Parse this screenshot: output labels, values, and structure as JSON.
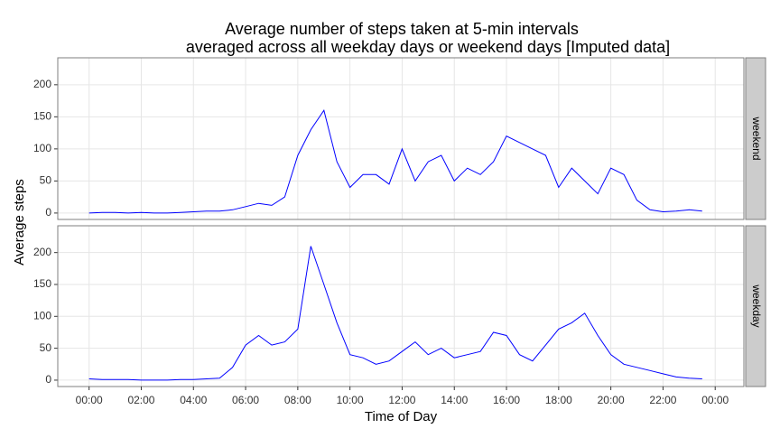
{
  "chart_data": {
    "type": "line",
    "title": [
      "Average number of steps taken at 5-min intervals",
      "averaged across all weekday days or weekend days [Imputed data]"
    ],
    "xlabel": "Time of Day",
    "ylabel": "Average steps",
    "x": [
      0,
      0.5,
      1,
      1.5,
      2,
      2.5,
      3,
      3.5,
      4,
      4.5,
      5,
      5.5,
      6,
      6.5,
      7,
      7.5,
      8,
      8.5,
      9,
      9.5,
      10,
      10.5,
      11,
      11.5,
      12,
      12.5,
      13,
      13.5,
      14,
      14.5,
      15,
      15.5,
      16,
      16.5,
      17,
      17.5,
      18,
      18.5,
      19,
      19.5,
      20,
      20.5,
      21,
      21.5,
      22,
      22.5,
      23,
      23.5
    ],
    "series": [
      {
        "name": "weekend",
        "color": "#0000ff",
        "values": [
          0,
          1,
          1,
          0,
          1,
          0,
          0,
          1,
          2,
          3,
          3,
          5,
          10,
          15,
          12,
          25,
          90,
          130,
          160,
          80,
          40,
          60,
          60,
          45,
          100,
          50,
          80,
          90,
          50,
          70,
          60,
          80,
          120,
          110,
          100,
          90,
          40,
          70,
          50,
          30,
          70,
          60,
          20,
          5,
          2,
          3,
          5,
          3
        ]
      },
      {
        "name": "weekday",
        "color": "#0000ff",
        "values": [
          2,
          1,
          1,
          1,
          0,
          0,
          0,
          1,
          1,
          2,
          3,
          20,
          55,
          70,
          55,
          60,
          80,
          210,
          150,
          90,
          40,
          35,
          25,
          30,
          45,
          60,
          40,
          50,
          35,
          40,
          45,
          75,
          70,
          40,
          30,
          55,
          80,
          90,
          105,
          70,
          40,
          25,
          20,
          15,
          10,
          5,
          3,
          2
        ]
      }
    ],
    "xlim": [
      -1.2,
      25.1
    ],
    "xticks": [
      {
        "value": 0,
        "label": "00:00"
      },
      {
        "value": 2,
        "label": "02:00"
      },
      {
        "value": 4,
        "label": "04:00"
      },
      {
        "value": 6,
        "label": "06:00"
      },
      {
        "value": 8,
        "label": "08:00"
      },
      {
        "value": 10,
        "label": "10:00"
      },
      {
        "value": 12,
        "label": "12:00"
      },
      {
        "value": 14,
        "label": "14:00"
      },
      {
        "value": 16,
        "label": "16:00"
      },
      {
        "value": 18,
        "label": "18:00"
      },
      {
        "value": 20,
        "label": "20:00"
      },
      {
        "value": 22,
        "label": "22:00"
      },
      {
        "value": 24,
        "label": "00:00"
      }
    ],
    "ylim": [
      -10,
      242
    ],
    "yticks": [
      0,
      50,
      100,
      150,
      200
    ],
    "grid": true
  }
}
